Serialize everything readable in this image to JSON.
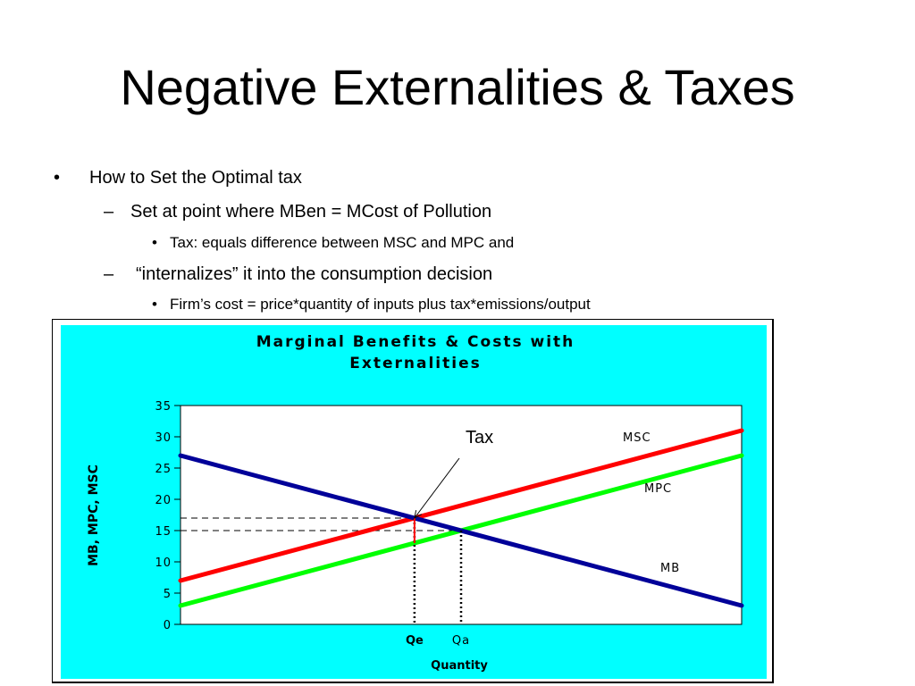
{
  "slide": {
    "title": "Negative Externalities & Taxes",
    "bullets": [
      {
        "marker": "•",
        "text": "How to Set the Optimal tax"
      },
      {
        "marker": "–",
        "text": "Set at point where MBen = MCost of Pollution"
      },
      {
        "marker": "•",
        "text": "Tax: equals difference between MSC and MPC and"
      },
      {
        "marker": "–",
        "text": "“internalizes” it into the consumption decision"
      },
      {
        "marker": "•",
        "text": "Firm’s cost = price*quantity of inputs plus tax*emissions/output"
      }
    ]
  },
  "colors": {
    "panel": "#00ffff",
    "MSC": "#ff0000",
    "MPC": "#00ff00",
    "MB": "#000099"
  },
  "chart_data": {
    "type": "line",
    "title_lines": [
      "Marginal Benefits & Costs with",
      "Externalities"
    ],
    "xlabel": "Quantity",
    "ylabel": "MB, MPC, MSC",
    "ylim": [
      0,
      35
    ],
    "yticks": [
      0,
      5,
      10,
      15,
      20,
      25,
      30,
      35
    ],
    "xlim": [
      0,
      100
    ],
    "grid": false,
    "series": [
      {
        "name": "MSC",
        "x": [
          0,
          100
        ],
        "y": [
          7,
          31
        ]
      },
      {
        "name": "MPC",
        "x": [
          0,
          100
        ],
        "y": [
          3,
          27
        ]
      },
      {
        "name": "MB",
        "x": [
          0,
          100
        ],
        "y": [
          27,
          3
        ]
      }
    ],
    "x_markers": [
      {
        "label": "Qe",
        "x": 41.7
      },
      {
        "label": "Qa",
        "x": 50
      }
    ],
    "h_guides": [
      17,
      15
    ],
    "tax_segment": {
      "x": 41.7,
      "y_top": 17,
      "y_bottom": 13
    },
    "annotation": {
      "text": "Tax"
    }
  }
}
